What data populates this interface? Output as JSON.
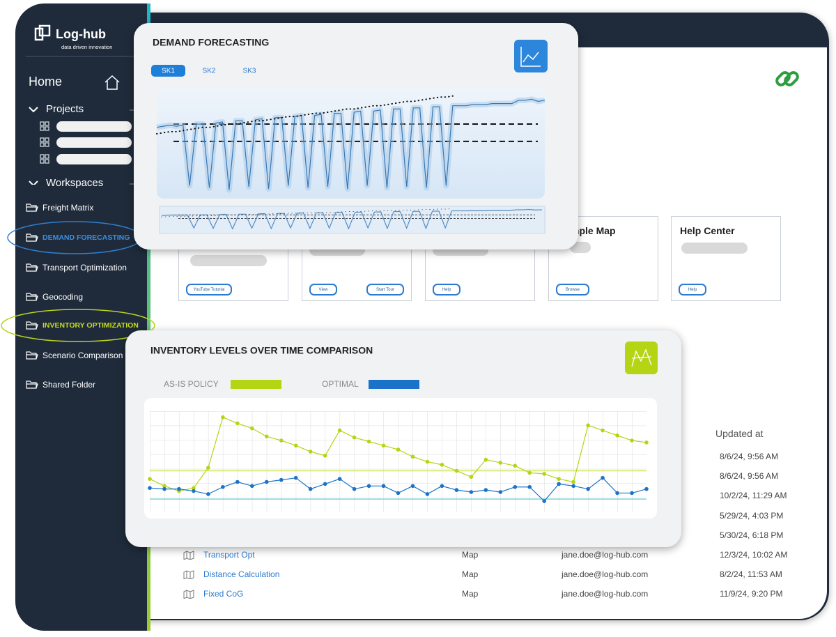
{
  "sidebar": {
    "logo": "Log-hub",
    "tagline": "data driven innovation",
    "home": "Home",
    "projects": "Projects",
    "workspaces_heading": "Workspaces",
    "workspaces": [
      "Freight Matrix",
      "DEMAND FORECASTING",
      "Transport Optimization",
      "Geocoding",
      "INVENTORY OPTIMIZATION",
      "Scenario Comparison",
      "Shared Folder"
    ]
  },
  "cards": [
    {
      "buttons": [
        "YouTube Tutorial"
      ]
    },
    {
      "buttons": [
        "View",
        "Start Tour"
      ]
    },
    {
      "buttons": [
        "Help"
      ]
    },
    {
      "title": "mple Map",
      "buttons": [
        "Browse"
      ]
    },
    {
      "title": "Help Center",
      "buttons": [
        "Help"
      ]
    }
  ],
  "table": {
    "header": "Updated at",
    "rows": [
      {
        "updated": "8/6/24, 9:56 AM"
      },
      {
        "updated": "8/6/24, 9:56 AM"
      },
      {
        "updated": "10/2/24, 11:29 AM"
      },
      {
        "updated": "5/29/24, 4:03 PM"
      },
      {
        "updated": "5/30/24, 6:18 PM"
      },
      {
        "name": "Transport Opt",
        "type": "Map",
        "owner": "jane.doe@log-hub.com",
        "updated": "12/3/24, 10:02 AM"
      },
      {
        "name": "Distance Calculation",
        "type": "Map",
        "owner": "jane.doe@log-hub.com",
        "updated": "8/2/24, 11:53 AM"
      },
      {
        "name": "Fixed CoG",
        "type": "Map",
        "owner": "jane.doe@log-hub.com",
        "updated": "11/9/24, 9:20 PM"
      }
    ]
  },
  "chart_data": [
    {
      "type": "line",
      "title": "DEMAND FORECASTING",
      "tabs": [
        "SK1",
        "SK2",
        "SK3"
      ],
      "ylim": [
        0,
        100
      ],
      "series": [
        {
          "color": "#3a78b0",
          "values": [
            66,
            67,
            68,
            67,
            68,
            12,
            69,
            69,
            10,
            70,
            71,
            8,
            72,
            72,
            11,
            73,
            74,
            9,
            75,
            75,
            12,
            76,
            77,
            10,
            77,
            78,
            11,
            79,
            79,
            9,
            80,
            81,
            12,
            81,
            82,
            10,
            83,
            83,
            11,
            84,
            84,
            10,
            85,
            85,
            12,
            86,
            86,
            86,
            87,
            87,
            87,
            88,
            88,
            88,
            88,
            91,
            91,
            92,
            90,
            91
          ]
        },
        {
          "color": "#111111",
          "values": [
            60,
            61,
            62,
            62,
            63,
            64,
            65,
            66,
            66,
            67,
            68,
            69,
            69,
            70,
            71,
            72,
            72,
            73,
            74,
            75,
            76,
            76,
            77,
            78,
            79,
            79,
            80,
            81,
            82,
            83,
            83,
            84,
            85,
            86,
            86,
            87,
            88,
            89,
            90,
            90,
            91,
            92,
            93,
            94,
            94,
            95,
            null,
            null,
            null,
            null,
            null,
            null,
            null,
            null,
            null,
            null,
            null,
            null,
            null,
            null
          ]
        }
      ],
      "reference_lines": [
        69,
        53
      ]
    },
    {
      "type": "line",
      "title": "INVENTORY LEVELS OVER TIME COMPARISON",
      "ylim": [
        0,
        100
      ],
      "grid": true,
      "series": [
        {
          "name": "AS-IS POLICY",
          "color": "#b5d414",
          "values": [
            33,
            26,
            21,
            24,
            44,
            94,
            88,
            83,
            75,
            71,
            66,
            60,
            56,
            81,
            74,
            70,
            66,
            62,
            55,
            50,
            47,
            41,
            35,
            52,
            49,
            46,
            39,
            38,
            33,
            30,
            86,
            81,
            76,
            71,
            69
          ]
        },
        {
          "name": "OPTIMAL",
          "color": "#1a73c8",
          "values": [
            24,
            23,
            23,
            21,
            18,
            25,
            30,
            26,
            30,
            32,
            34,
            23,
            28,
            33,
            23,
            26,
            26,
            19,
            26,
            18,
            26,
            22,
            20,
            22,
            20,
            25,
            25,
            11,
            28,
            26,
            23,
            34,
            19,
            19,
            23
          ]
        }
      ],
      "reference_lines": [
        {
          "value": 41,
          "color": "#d4e65e"
        },
        {
          "value": 13,
          "color": "#7fd6e0"
        }
      ]
    }
  ]
}
